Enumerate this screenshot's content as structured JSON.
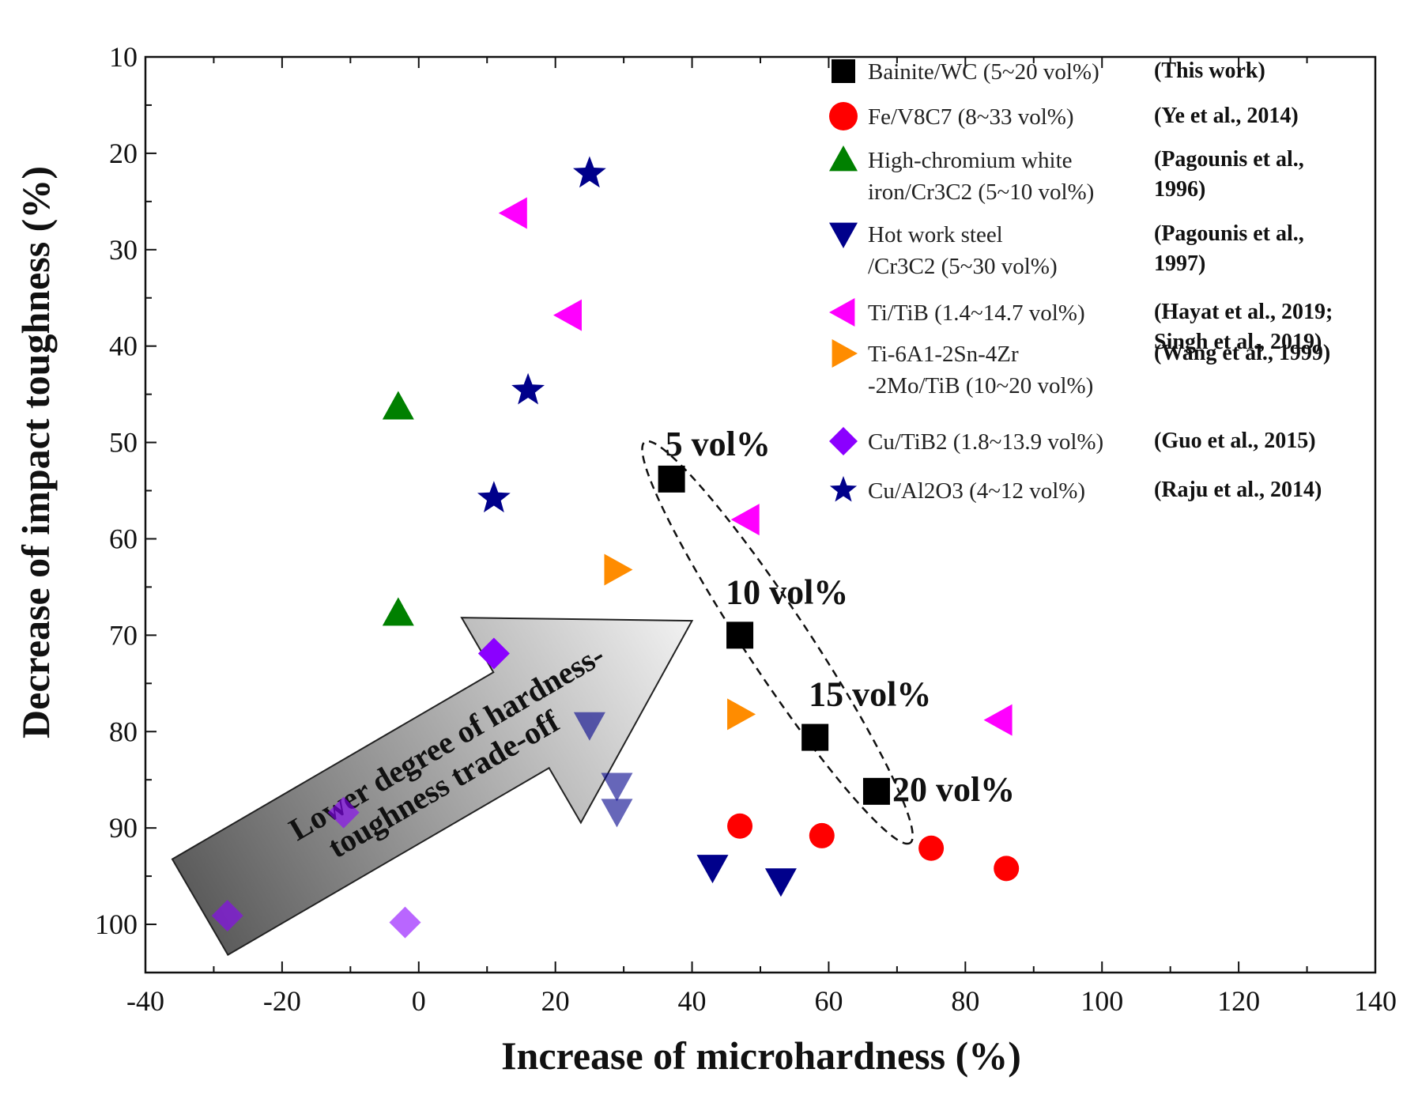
{
  "chart_data": {
    "type": "scatter",
    "xlabel": "Increase of microhardness (%)",
    "ylabel": "Decrease of impact toughness (%)",
    "xlim": [
      -40,
      140
    ],
    "ylim": [
      10,
      105
    ],
    "y_inverted": true,
    "x_ticks": [
      -40,
      -20,
      0,
      20,
      40,
      60,
      80,
      100,
      120,
      140
    ],
    "y_ticks": [
      10,
      20,
      30,
      40,
      50,
      60,
      70,
      80,
      90,
      100
    ],
    "legend_position": "top-right",
    "series": [
      {
        "name": "Bainite/WC (5~20 vol%)",
        "ref": "(This work)",
        "marker": "square",
        "color": "#000000",
        "points": [
          [
            37,
            53.8
          ],
          [
            47,
            70
          ],
          [
            58,
            80.6
          ],
          [
            67,
            86.2
          ]
        ]
      },
      {
        "name": "Fe/V8C7 (8~33 vol%)",
        "ref": "(Ye et al., 2014)",
        "marker": "circle",
        "color": "#ff0000",
        "points": [
          [
            47,
            89.8
          ],
          [
            59,
            90.8
          ],
          [
            75,
            92.1
          ],
          [
            86,
            94.2
          ]
        ]
      },
      {
        "name": "High-chromium white iron/Cr3C2 (5~10 vol%)",
        "ref": "(Pagounis et al., 1996)",
        "marker": "triangle-up",
        "color": "#008000",
        "points": [
          [
            -3,
            46.3
          ],
          [
            -3,
            67.7
          ]
        ]
      },
      {
        "name": "Hot work steel /Cr3C2 (5~30 vol%)",
        "ref": "(Pagounis et al., 1997)",
        "marker": "triangle-down",
        "color": "#00008b",
        "points": [
          [
            25,
            79.3
          ],
          [
            29,
            85.6
          ],
          [
            29,
            88.3
          ],
          [
            43,
            94.1
          ],
          [
            53,
            95.5
          ]
        ]
      },
      {
        "name": "Ti/TiB (1.4~14.7 vol%)",
        "ref": "(Hayat et al., 2019; Singh et al., 2019)",
        "marker": "triangle-left",
        "color": "#ff00ff",
        "points": [
          [
            14,
            26.2
          ],
          [
            22,
            36.8
          ],
          [
            48,
            58
          ],
          [
            85,
            78.8
          ]
        ]
      },
      {
        "name": "Ti-6A1-2Sn-4Zr -2Mo/TiB (10~20 vol%)",
        "ref": "(Wang et al., 1999)",
        "marker": "triangle-right",
        "color": "#ff8c00",
        "points": [
          [
            29,
            63.2
          ],
          [
            47,
            78.2
          ]
        ]
      },
      {
        "name": "Cu/TiB2 (1.8~13.9 vol%)",
        "ref": "(Guo et al., 2015)",
        "marker": "diamond",
        "color": "#8b00ff",
        "points": [
          [
            -28,
            99.1
          ],
          [
            -11,
            88.4
          ],
          [
            -2,
            99.8
          ],
          [
            11,
            71.9
          ]
        ]
      },
      {
        "name": "Cu/Al2O3 (4~12 vol%)",
        "ref": "(Raju et al., 2014)",
        "marker": "star",
        "color": "#00008b",
        "points": [
          [
            25,
            22.1
          ],
          [
            16,
            44.6
          ],
          [
            11,
            55.8
          ]
        ]
      }
    ],
    "annotations": [
      "5 vol%",
      "10 vol%",
      "15 vol%",
      "20 vol%"
    ],
    "arrow_text": [
      "Lower degree of hardness-",
      "toughness trade-off"
    ],
    "legend_entries": [
      {
        "lines": [
          "Bainite/WC (5~20 vol%)"
        ],
        "ref": [
          "(This work)"
        ]
      },
      {
        "lines": [
          "Fe/V8C7 (8~33 vol%)"
        ],
        "ref": [
          "(Ye et al., 2014)"
        ]
      },
      {
        "lines": [
          "High-chromium white",
          "iron/Cr3C2 (5~10 vol%)"
        ],
        "ref": [
          "(Pagounis et al.,",
          "1996)"
        ]
      },
      {
        "lines": [
          "Hot work steel",
          "/Cr3C2 (5~30 vol%)"
        ],
        "ref": [
          "(Pagounis et al.,",
          "1997)"
        ]
      },
      {
        "lines": [
          "Ti/TiB (1.4~14.7 vol%)"
        ],
        "ref": [
          "(Hayat et al., 2019;",
          "Singh et al., 2019)"
        ]
      },
      {
        "lines": [
          "Ti-6A1-2Sn-4Zr",
          "-2Mo/TiB (10~20 vol%)"
        ],
        "ref": [
          "(Wang et al., 1999)"
        ]
      },
      {
        "lines": [
          "Cu/TiB2 (1.8~13.9 vol%)"
        ],
        "ref": [
          "(Guo et al., 2015)"
        ]
      },
      {
        "lines": [
          "Cu/Al2O3 (4~12 vol%)"
        ],
        "ref": [
          "(Raju et al., 2014)"
        ]
      }
    ]
  }
}
